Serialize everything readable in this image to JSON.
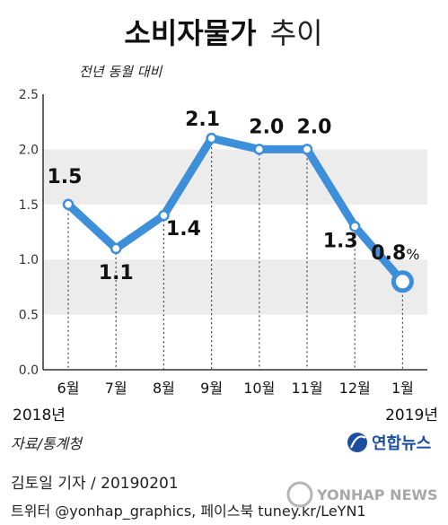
{
  "header": {
    "title_bold": "소비자물가",
    "title_light": "추이"
  },
  "chart_data": {
    "type": "line",
    "subtitle": "전년 동월 대비",
    "categories": [
      "6월",
      "7월",
      "8월",
      "9월",
      "10월",
      "11월",
      "12월",
      "1월"
    ],
    "values": [
      1.5,
      1.1,
      1.4,
      2.1,
      2.0,
      2.0,
      1.3,
      0.8
    ],
    "data_labels": [
      "1.5",
      "1.1",
      "1.4",
      "2.1",
      "2.0",
      "2.0",
      "1.3",
      "0.8"
    ],
    "last_unit": "%",
    "year_labels": [
      {
        "category_index": 0,
        "text": "2018년"
      },
      {
        "category_index": 7,
        "text": "2019년"
      }
    ],
    "ylim": [
      0,
      2.5
    ],
    "y_ticks": [
      "0.0",
      "0.5",
      "1.0",
      "1.5",
      "2.0",
      "2.5"
    ],
    "grid": "alternating horizontal bands",
    "colors": {
      "line": "#3d8fd9",
      "marker_fill": "#ffffff",
      "band": "#ececec",
      "axis": "#333333",
      "text": "#111111"
    }
  },
  "footer": {
    "source": "자료/통계청",
    "brand": "연합뉴스",
    "credit": "김토일 기자 / 20190201",
    "social": "트위터 @yonhap_graphics, 페이스북 tuney.kr/LeYN1",
    "watermark": "YONHAP NEWS"
  }
}
